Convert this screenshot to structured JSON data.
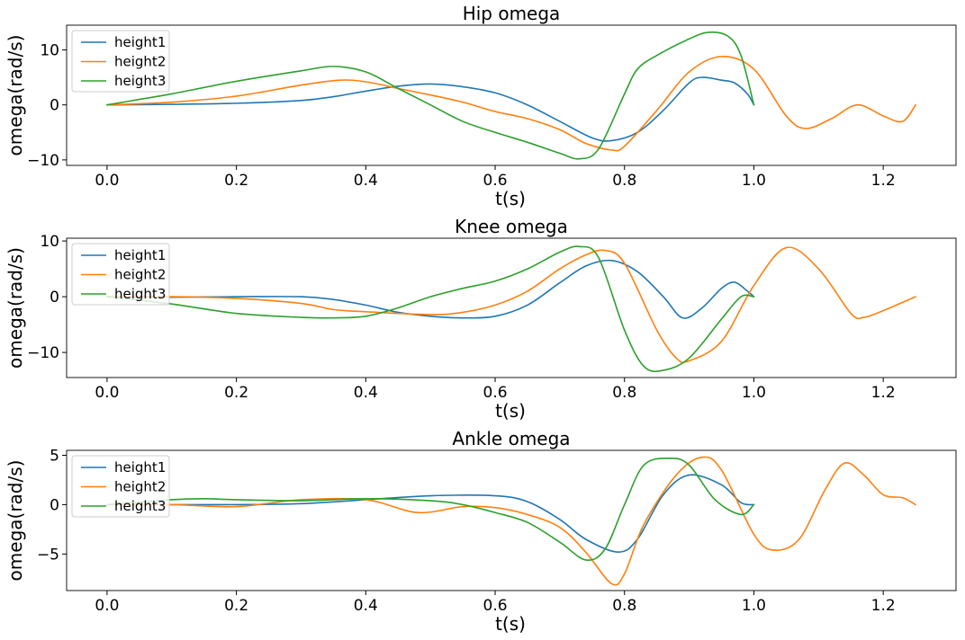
{
  "chart_data": [
    {
      "type": "line",
      "title": "Hip omega",
      "xlabel": "t(s)",
      "ylabel": "omega(rad/s)",
      "xlim": [
        -0.0625,
        1.3125
      ],
      "ylim": [
        -11,
        14.5
      ],
      "xticks": [
        "0.0",
        "0.2",
        "0.4",
        "0.6",
        "0.8",
        "1.0",
        "1.2"
      ],
      "xtick_values": [
        0,
        0.2,
        0.4,
        0.6,
        0.8,
        1.0,
        1.2
      ],
      "yticks": [
        "−10",
        "0",
        "10"
      ],
      "ytick_values": [
        -10,
        0,
        10
      ],
      "legend_position": "upper-left",
      "series": [
        {
          "name": "height1",
          "color": "#1f77b4",
          "x": [
            0,
            0.1,
            0.2,
            0.3,
            0.35,
            0.4,
            0.45,
            0.5,
            0.55,
            0.6,
            0.65,
            0.7,
            0.75,
            0.78,
            0.82,
            0.86,
            0.9,
            0.92,
            0.95,
            0.97,
            0.99,
            1.0
          ],
          "y": [
            0,
            0.1,
            0.3,
            0.8,
            1.5,
            2.5,
            3.4,
            3.8,
            3.3,
            2.2,
            0,
            -3,
            -6,
            -6.5,
            -5,
            -1,
            4,
            5,
            4.5,
            4,
            2,
            0
          ]
        },
        {
          "name": "height2",
          "color": "#ff7f0e",
          "x": [
            0,
            0.1,
            0.2,
            0.3,
            0.36,
            0.4,
            0.45,
            0.5,
            0.55,
            0.6,
            0.65,
            0.7,
            0.74,
            0.78,
            0.8,
            0.85,
            0.9,
            0.95,
            1.0,
            1.05,
            1.08,
            1.12,
            1.16,
            1.2,
            1.23,
            1.25
          ],
          "y": [
            0,
            0.5,
            1.6,
            3.6,
            4.5,
            4.2,
            3,
            1.8,
            0.5,
            -1.2,
            -2.5,
            -4.5,
            -7,
            -8.2,
            -7.5,
            -1,
            6,
            8.8,
            6.5,
            -2,
            -4.3,
            -2.5,
            0,
            -2,
            -3,
            0
          ]
        },
        {
          "name": "height3",
          "color": "#2ca02c",
          "x": [
            0,
            0.05,
            0.1,
            0.2,
            0.3,
            0.35,
            0.4,
            0.45,
            0.5,
            0.55,
            0.6,
            0.65,
            0.7,
            0.73,
            0.76,
            0.8,
            0.82,
            0.85,
            0.9,
            0.93,
            0.96,
            0.98,
            1.0
          ],
          "y": [
            0,
            1,
            2,
            4.3,
            6.2,
            7,
            6,
            3,
            0,
            -3,
            -5,
            -6.8,
            -8.8,
            -9.8,
            -8,
            2,
            6.5,
            9,
            12,
            13.2,
            12.5,
            9,
            0
          ]
        }
      ]
    },
    {
      "type": "line",
      "title": "Knee omega",
      "xlabel": "t(s)",
      "ylabel": "omega(rad/s)",
      "xlim": [
        -0.0625,
        1.3125
      ],
      "ylim": [
        -14.5,
        10.5
      ],
      "xticks": [
        "0.0",
        "0.2",
        "0.4",
        "0.6",
        "0.8",
        "1.0",
        "1.2"
      ],
      "xtick_values": [
        0,
        0.2,
        0.4,
        0.6,
        0.8,
        1.0,
        1.2
      ],
      "yticks": [
        "−10",
        "0",
        "10"
      ],
      "ytick_values": [
        -10,
        0,
        10
      ],
      "legend_position": "upper-left",
      "series": [
        {
          "name": "height1",
          "color": "#1f77b4",
          "x": [
            0,
            0.1,
            0.2,
            0.3,
            0.35,
            0.4,
            0.45,
            0.5,
            0.55,
            0.6,
            0.65,
            0.7,
            0.74,
            0.78,
            0.82,
            0.86,
            0.89,
            0.92,
            0.95,
            0.97,
            0.99,
            1.0
          ],
          "y": [
            0,
            -0.1,
            0,
            0,
            -0.5,
            -1.5,
            -2.8,
            -3.5,
            -3.8,
            -3.5,
            -1.5,
            2.5,
            5.5,
            6.5,
            4.5,
            0,
            -3.8,
            -2,
            1.5,
            2.6,
            1,
            0
          ]
        },
        {
          "name": "height2",
          "color": "#ff7f0e",
          "x": [
            0,
            0.1,
            0.2,
            0.3,
            0.35,
            0.4,
            0.5,
            0.55,
            0.6,
            0.65,
            0.7,
            0.74,
            0.77,
            0.8,
            0.85,
            0.88,
            0.9,
            0.95,
            1.0,
            1.05,
            1.1,
            1.15,
            1.17,
            1.2,
            1.25
          ],
          "y": [
            0,
            0,
            -0.3,
            -1.2,
            -2.3,
            -2.7,
            -3.2,
            -2.8,
            -1.5,
            1,
            5,
            7.5,
            8.3,
            6,
            -6,
            -11,
            -11.5,
            -8,
            2,
            8.8,
            5,
            -3,
            -3.7,
            -2.5,
            0
          ]
        },
        {
          "name": "height3",
          "color": "#2ca02c",
          "x": [
            0,
            0.1,
            0.2,
            0.3,
            0.35,
            0.4,
            0.45,
            0.5,
            0.55,
            0.6,
            0.65,
            0.7,
            0.73,
            0.76,
            0.8,
            0.83,
            0.86,
            0.9,
            0.95,
            0.98,
            1.0
          ],
          "y": [
            0,
            -1.3,
            -3,
            -3.7,
            -3.8,
            -3.5,
            -2,
            0,
            1.5,
            2.8,
            5,
            8,
            9,
            7,
            -6,
            -12.5,
            -13.2,
            -11,
            -4,
            0,
            0
          ]
        }
      ]
    },
    {
      "type": "line",
      "title": "Ankle omega",
      "xlabel": "t(s)",
      "ylabel": "omega(rad/s)",
      "xlim": [
        -0.0625,
        1.3125
      ],
      "ylim": [
        -8.7,
        5.5
      ],
      "xticks": [
        "0.0",
        "0.2",
        "0.4",
        "0.6",
        "0.8",
        "1.0",
        "1.2"
      ],
      "xtick_values": [
        0,
        0.2,
        0.4,
        0.6,
        0.8,
        1.0,
        1.2
      ],
      "yticks": [
        "−5",
        "0",
        "5"
      ],
      "ytick_values": [
        -5,
        0,
        5
      ],
      "legend_position": "upper-left",
      "series": [
        {
          "name": "height1",
          "color": "#1f77b4",
          "x": [
            0,
            0.1,
            0.2,
            0.3,
            0.4,
            0.5,
            0.6,
            0.65,
            0.7,
            0.74,
            0.79,
            0.82,
            0.86,
            0.9,
            0.95,
            0.98,
            1.0
          ],
          "y": [
            0,
            0,
            0,
            0.1,
            0.5,
            0.9,
            0.9,
            0.3,
            -1.5,
            -3.5,
            -4.8,
            -3.5,
            1,
            3,
            2,
            0.2,
            0
          ]
        },
        {
          "name": "height2",
          "color": "#ff7f0e",
          "x": [
            0,
            0.1,
            0.2,
            0.3,
            0.4,
            0.48,
            0.55,
            0.6,
            0.65,
            0.7,
            0.74,
            0.78,
            0.8,
            0.83,
            0.88,
            0.92,
            0.95,
            1.0,
            1.03,
            1.07,
            1.11,
            1.14,
            1.17,
            1.2,
            1.23,
            1.25
          ],
          "y": [
            0,
            0,
            -0.2,
            0.5,
            0.5,
            -0.8,
            -0.2,
            -0.3,
            -1,
            -2.3,
            -4.8,
            -8,
            -7,
            -2,
            3,
            4.8,
            3.5,
            -3,
            -4.6,
            -3.5,
            1.5,
            4.2,
            3,
            1,
            0.7,
            0
          ]
        },
        {
          "name": "height3",
          "color": "#2ca02c",
          "x": [
            0,
            0.1,
            0.15,
            0.2,
            0.3,
            0.4,
            0.5,
            0.55,
            0.6,
            0.65,
            0.7,
            0.74,
            0.77,
            0.8,
            0.83,
            0.87,
            0.9,
            0.94,
            0.98,
            1.0
          ],
          "y": [
            0,
            0.5,
            0.6,
            0.5,
            0.4,
            0.6,
            0.4,
            0,
            -0.8,
            -1.8,
            -3.8,
            -5.6,
            -4.5,
            0,
            4,
            4.7,
            4,
            0.5,
            -1,
            0
          ]
        }
      ]
    }
  ]
}
